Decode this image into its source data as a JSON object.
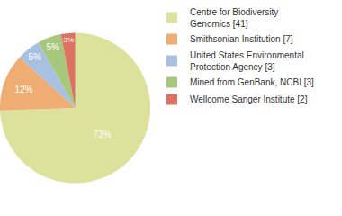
{
  "chart_data": {
    "type": "pie",
    "categories": [
      "Centre for Biodiversity Genomics [41]",
      "Smithsonian Institution [7]",
      "United States Environmental Protection Agency [3]",
      "Mined from GenBank, NCBI [3]",
      "Wellcome Sanger Institute [2]"
    ],
    "values": [
      73,
      12,
      5,
      5,
      3
    ],
    "value_labels": [
      "73%",
      "12%",
      "5%",
      "5%",
      "3%"
    ],
    "data_labels": true,
    "legend": "upper right",
    "colors": [
      "#dce29c",
      "#efad73",
      "#a8c0e2",
      "#a7c87c",
      "#dd7262"
    ]
  }
}
